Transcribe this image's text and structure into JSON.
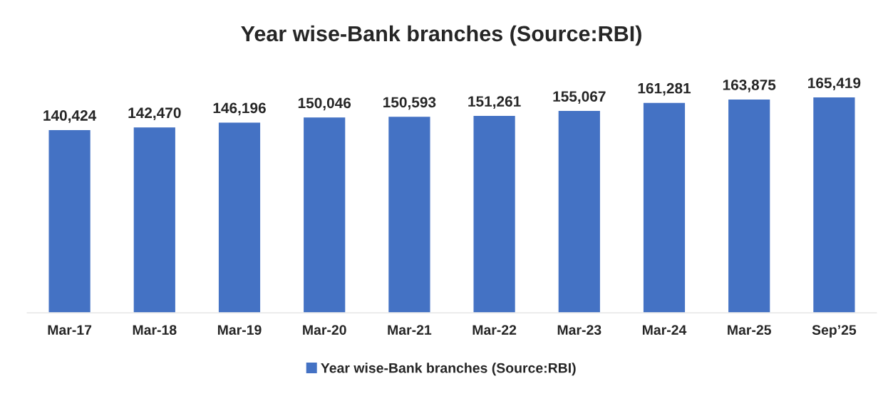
{
  "chart_data": {
    "type": "bar",
    "title": "Year wise-Bank branches (Source:RBI)",
    "categories": [
      "Mar-17",
      "Mar-18",
      "Mar-19",
      "Mar-20",
      "Mar-21",
      "Mar-22",
      "Mar-23",
      "Mar-24",
      "Mar-25",
      "Sep’25"
    ],
    "series": [
      {
        "name": "Year wise-Bank branches (Source:RBI)",
        "color": "#4472c4",
        "values": [
          140424,
          142470,
          146196,
          150046,
          150593,
          151261,
          155067,
          161281,
          163875,
          165419
        ],
        "value_labels": [
          "140,424",
          "142,470",
          "146,196",
          "150,046",
          "150,593",
          "151,261",
          "155,067",
          "161,281",
          "163,875",
          "165,419"
        ]
      }
    ],
    "tick_labels": "x",
    "grid": false,
    "legend": "bottom"
  }
}
